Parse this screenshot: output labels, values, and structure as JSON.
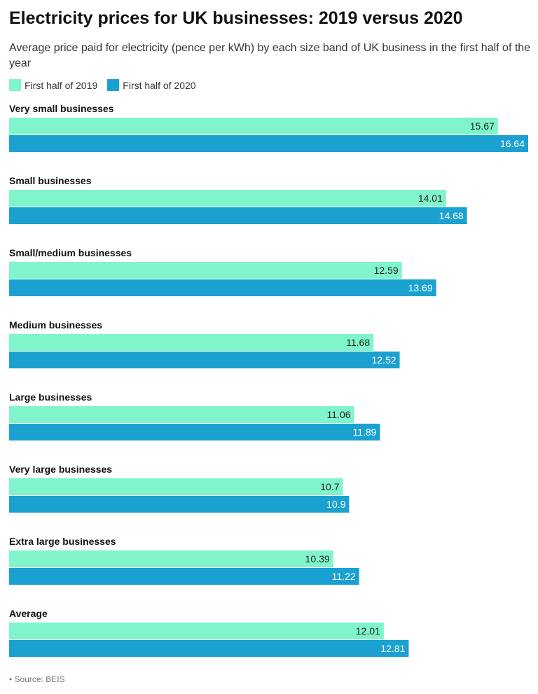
{
  "header": {
    "title": "Electricity prices for UK businesses: 2019 versus 2020",
    "subtitle": "Average price paid for electricity (pence per kWh) by each size band of UK business in the first half of the year"
  },
  "footer": {
    "source": "• Source: BEIS"
  },
  "colors": {
    "series_2019": "#80f5cb",
    "series_2020": "#1aa1d0"
  },
  "chart_data": {
    "type": "bar",
    "orientation": "horizontal",
    "title": "Electricity prices for UK businesses: 2019 versus 2020",
    "legend_position": "top-left",
    "grid": false,
    "categories": [
      "Very small businesses",
      "Small businesses",
      "Small/medium businesses",
      "Medium businesses",
      "Large businesses",
      "Very large businesses",
      "Extra large businesses",
      "Average"
    ],
    "series": [
      {
        "name": "First half of 2019",
        "color": "#80f5cb",
        "values": [
          15.67,
          14.01,
          12.59,
          11.68,
          11.06,
          10.7,
          10.39,
          12.01
        ]
      },
      {
        "name": "First half of 2020",
        "color": "#1aa1d0",
        "values": [
          16.64,
          14.68,
          13.69,
          12.52,
          11.89,
          10.9,
          11.22,
          12.81
        ]
      }
    ],
    "xlim": [
      0,
      16.64
    ]
  }
}
